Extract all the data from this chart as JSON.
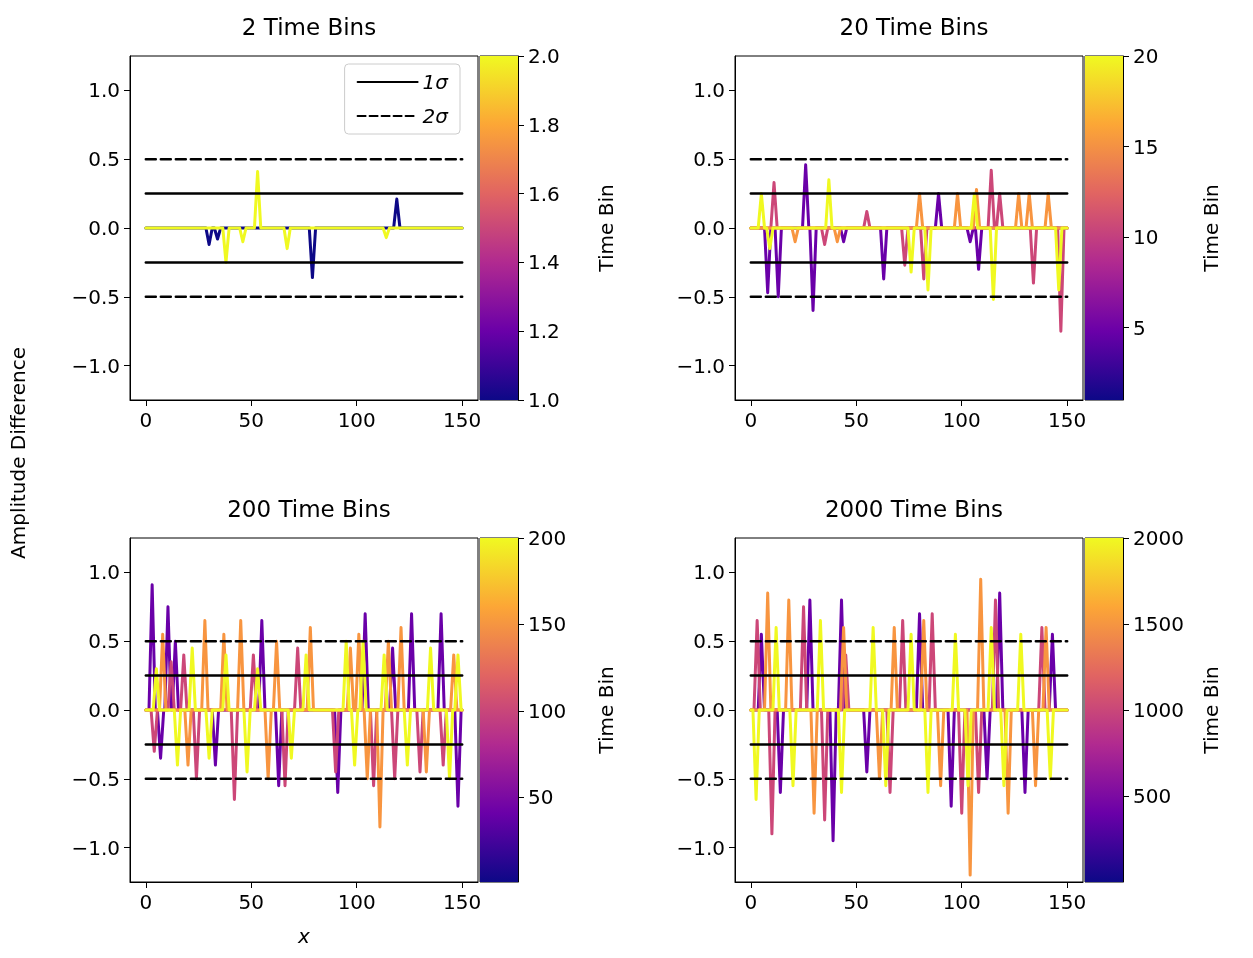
{
  "chart_data": [
    {
      "type": "line",
      "title": "2 Time Bins",
      "ylabel": "Amplitude Difference",
      "xlim": [
        -7.5,
        157.5
      ],
      "xticks": [
        0,
        50,
        100,
        150
      ],
      "ylim": [
        -1.25,
        1.25
      ],
      "yticks": [
        {
          "value": -1,
          "label": "−1.0"
        },
        {
          "value": -0.5,
          "label": "−0.5"
        },
        {
          "value": 0,
          "label": "0.0"
        },
        {
          "value": 0.5,
          "label": "0.5"
        },
        {
          "value": 1,
          "label": "1.0"
        }
      ],
      "clabel": "Time Bin",
      "clim": [
        1,
        2
      ],
      "cticks": [
        {
          "value": 1,
          "label": "1.0"
        },
        {
          "value": 1.2,
          "label": "1.2"
        },
        {
          "value": 1.4,
          "label": "1.4"
        },
        {
          "value": 1.6,
          "label": "1.6"
        },
        {
          "value": 1.8,
          "label": "1.8"
        },
        {
          "value": 2,
          "label": "2.0"
        }
      ],
      "legend": "top right",
      "marker": "none",
      "series": [
        {
          "color": "#0d0887",
          "x": [
            0,
            28.5,
            30,
            31.5,
            32.5,
            34,
            35.5,
            77.5,
            79,
            80.5,
            117.5,
            119,
            120.5,
            150
          ],
          "values": [
            0,
            0,
            -0.12,
            0,
            0,
            -0.08,
            0,
            0,
            -0.36,
            0,
            0,
            0.21,
            0,
            0
          ]
        },
        {
          "color": "#f0f921",
          "x": [
            0,
            36.5,
            38,
            39.5,
            44.5,
            46,
            47.5,
            51.5,
            53,
            54.5,
            65.5,
            67,
            68.5,
            112.5,
            114,
            115.5,
            150
          ],
          "values": [
            0,
            0,
            -0.25,
            0,
            0,
            -0.1,
            0,
            0,
            0.41,
            0,
            0,
            -0.15,
            0,
            0,
            -0.07,
            0,
            0
          ]
        },
        {
          "name": "1σ",
          "color": "#000000",
          "line_style": "solid",
          "x": [
            0,
            150
          ],
          "values": [
            0.25,
            0.25
          ]
        },
        {
          "color": "#000000",
          "line_style": "solid",
          "x": [
            0,
            150
          ],
          "values": [
            -0.25,
            -0.25
          ]
        },
        {
          "name": "2σ",
          "color": "#000000",
          "line_style": "dashed",
          "x": [
            0,
            150
          ],
          "values": [
            0.5,
            0.5
          ]
        },
        {
          "color": "#000000",
          "line_style": "dashed",
          "x": [
            0,
            150
          ],
          "values": [
            -0.5,
            -0.5
          ]
        }
      ]
    },
    {
      "type": "line",
      "title": "20 Time Bins",
      "xlim": [
        -7.5,
        157.5
      ],
      "xticks": [
        0,
        50,
        100,
        150
      ],
      "ylim": [
        -1.25,
        1.25
      ],
      "yticks": [
        {
          "value": -1,
          "label": "−1.0"
        },
        {
          "value": -0.5,
          "label": "−0.5"
        },
        {
          "value": 0,
          "label": "0.0"
        },
        {
          "value": 0.5,
          "label": "0.5"
        },
        {
          "value": 1,
          "label": "1.0"
        }
      ],
      "clabel": "Time Bin",
      "clim": [
        1,
        20
      ],
      "cticks": [
        5,
        10,
        15,
        20
      ],
      "marker": "none",
      "series": [
        {
          "color": "#6a00a8",
          "x": [
            0,
            6.5,
            8,
            9.5,
            11.5,
            13,
            14.5,
            24.5,
            26,
            27.5,
            28,
            29.5,
            31,
            42.5,
            44,
            45.5,
            61.5,
            63,
            64.5,
            87.5,
            89,
            90.5,
            102.5,
            104,
            105.5,
            106.5,
            108,
            109.5,
            150
          ],
          "values": [
            0,
            0,
            -0.47,
            0,
            0,
            -0.5,
            0,
            0,
            0.46,
            0,
            0,
            -0.6,
            0,
            0,
            -0.1,
            0,
            0,
            -0.37,
            0,
            0,
            0.25,
            0,
            0,
            -0.1,
            0,
            0,
            -0.3,
            0,
            0
          ]
        },
        {
          "color": "#cc4778",
          "x": [
            0,
            9.5,
            11,
            12.5,
            33.5,
            35,
            36.5,
            53.5,
            55,
            56.5,
            71.5,
            73,
            74.5,
            80.5,
            82,
            83.5,
            112.5,
            114,
            115.5,
            116.5,
            118,
            119.5,
            132.5,
            134,
            135.5,
            145.5,
            147,
            148.5,
            150
          ],
          "values": [
            0,
            0,
            0.33,
            0,
            0,
            -0.12,
            0,
            0,
            0.12,
            0,
            0,
            -0.27,
            0,
            0,
            -0.37,
            0,
            0,
            0.42,
            0,
            0,
            0.25,
            0,
            0,
            -0.4,
            0,
            0,
            -0.75,
            0,
            0
          ]
        },
        {
          "color": "#f89540",
          "x": [
            0,
            19.5,
            21,
            22.5,
            39.5,
            41,
            42.5,
            78.5,
            80,
            81.5,
            96.5,
            98,
            99.5,
            105.5,
            107,
            108.5,
            125.5,
            127,
            128.5,
            130.5,
            132,
            133.5,
            139.5,
            141,
            142.5,
            150
          ],
          "values": [
            0,
            0,
            -0.1,
            0,
            0,
            -0.1,
            0,
            0,
            0.25,
            0,
            0,
            0.25,
            0,
            0,
            0.28,
            0,
            0,
            0.25,
            0,
            0,
            0.25,
            0,
            0,
            0.25,
            0,
            0
          ]
        },
        {
          "color": "#f0f921",
          "x": [
            0,
            3.5,
            5,
            6.5,
            7.5,
            9,
            10.5,
            35.5,
            37,
            38.5,
            74.5,
            76,
            77.5,
            82.5,
            84,
            85.5,
            104.5,
            106,
            107.5,
            113.5,
            115,
            116.5,
            144.5,
            146,
            147.5,
            150
          ],
          "values": [
            0,
            0,
            0.25,
            0,
            0,
            -0.15,
            0,
            0,
            0.35,
            0,
            0,
            -0.32,
            0,
            0,
            -0.45,
            0,
            0,
            0.25,
            0,
            0,
            -0.52,
            0,
            0,
            -0.45,
            0,
            0
          ]
        },
        {
          "color": "#000000",
          "line_style": "solid",
          "x": [
            0,
            150
          ],
          "values": [
            0.25,
            0.25
          ]
        },
        {
          "color": "#000000",
          "line_style": "solid",
          "x": [
            0,
            150
          ],
          "values": [
            -0.25,
            -0.25
          ]
        },
        {
          "color": "#000000",
          "line_style": "dashed",
          "x": [
            0,
            150
          ],
          "values": [
            0.5,
            0.5
          ]
        },
        {
          "color": "#000000",
          "line_style": "dashed",
          "x": [
            0,
            150
          ],
          "values": [
            -0.5,
            -0.5
          ]
        }
      ]
    },
    {
      "type": "line",
      "title": "200 Time Bins",
      "xlabel": "x",
      "xlim": [
        -7.5,
        157.5
      ],
      "xticks": [
        0,
        50,
        100,
        150
      ],
      "ylim": [
        -1.25,
        1.25
      ],
      "yticks": [
        {
          "value": -1,
          "label": "−1.0"
        },
        {
          "value": -0.5,
          "label": "−0.5"
        },
        {
          "value": 0,
          "label": "0.0"
        },
        {
          "value": 0.5,
          "label": "0.5"
        },
        {
          "value": 1,
          "label": "1.0"
        }
      ],
      "clabel": "Time Bin",
      "clim": [
        1,
        200
      ],
      "cticks": [
        50,
        100,
        150,
        200
      ],
      "marker": "none",
      "series": [
        {
          "color": "#6a00a8",
          "x": [
            0,
            1.5,
            3,
            4.5,
            5.5,
            7,
            8.5,
            9,
            10.5,
            12,
            12.5,
            14,
            15.5,
            31.5,
            33,
            34.5,
            53.5,
            55,
            56.5,
            61.5,
            63,
            64.5,
            89.5,
            91,
            92.5,
            102.5,
            104,
            105.5,
            115.5,
            117,
            118.5,
            124.5,
            126,
            127.5,
            138.5,
            140,
            141.5,
            146.5,
            148,
            149.5,
            150
          ],
          "values": [
            0,
            0,
            0.91,
            0,
            0,
            -0.35,
            0,
            0,
            0.75,
            0,
            0,
            0.5,
            0,
            0,
            -0.4,
            0,
            0,
            0.65,
            0,
            0,
            -0.55,
            0,
            0,
            -0.6,
            0,
            0,
            0.7,
            0,
            0,
            0.45,
            0,
            0,
            0.7,
            0,
            0,
            0.7,
            0,
            0,
            -0.7,
            0,
            0
          ]
        },
        {
          "color": "#cc4778",
          "x": [
            0,
            2.5,
            4,
            5.5,
            10.5,
            12,
            13.5,
            16.5,
            18,
            19.5,
            22.5,
            24,
            25.5,
            40.5,
            42,
            43.5,
            49.5,
            51,
            52.5,
            64.5,
            66,
            67.5,
            70.5,
            72,
            73.5,
            88.5,
            90,
            91.5,
            106.5,
            108,
            109.5,
            116.5,
            118,
            119.5,
            128.5,
            130,
            131.5,
            139.5,
            141,
            142.5,
            150
          ],
          "values": [
            0,
            0,
            -0.3,
            0,
            0,
            0.35,
            0,
            0,
            0.4,
            0,
            0,
            -0.5,
            0,
            0,
            -0.65,
            0,
            0,
            0.4,
            0,
            0,
            -0.55,
            0,
            0,
            0.45,
            0,
            0,
            -0.45,
            0,
            0,
            -0.55,
            0,
            0,
            -0.5,
            0,
            0,
            -0.45,
            0,
            0,
            -0.4,
            0,
            0
          ]
        },
        {
          "color": "#f89540",
          "x": [
            0,
            6.5,
            8,
            9.5,
            18.5,
            20,
            21.5,
            26.5,
            28,
            29.5,
            35.5,
            37,
            38.5,
            43.5,
            45,
            46.5,
            56.5,
            58,
            59.5,
            60.5,
            62,
            63.5,
            76.5,
            78,
            79.5,
            95.5,
            97,
            98.5,
            99.5,
            101,
            102.5,
            103.5,
            105,
            106.5,
            109.5,
            111,
            112.5,
            113.5,
            115,
            116.5,
            119.5,
            121,
            122.5,
            131.5,
            133,
            134.5,
            144.5,
            146,
            147.5,
            150
          ],
          "values": [
            0,
            0,
            0.55,
            0,
            0,
            -0.4,
            0,
            0,
            0.65,
            0,
            0,
            0.55,
            0,
            0,
            0.65,
            0,
            0,
            -0.5,
            0,
            0,
            0.5,
            0,
            0,
            0.6,
            0,
            0,
            0.45,
            0,
            0,
            0.55,
            0,
            0,
            -0.5,
            0,
            0,
            -0.85,
            0,
            0,
            0.5,
            0,
            0,
            0.6,
            0,
            0,
            -0.45,
            0,
            0,
            0.4,
            0,
            0
          ]
        },
        {
          "color": "#f0f921",
          "x": [
            0,
            3.5,
            5,
            6.5,
            13.5,
            15,
            16.5,
            20.5,
            22,
            23.5,
            28.5,
            30,
            31.5,
            36.5,
            38,
            39.5,
            46.5,
            48,
            49.5,
            51.5,
            53,
            54.5,
            67.5,
            69,
            70.5,
            74.5,
            76,
            77.5,
            93.5,
            95,
            96.5,
            97.5,
            99,
            100.5,
            101.5,
            103,
            104.5,
            111.5,
            113,
            114.5,
            122.5,
            124,
            125.5,
            133.5,
            135,
            136.5,
            142.5,
            144,
            145.5,
            146.5,
            148,
            149.5,
            150
          ],
          "values": [
            0,
            0,
            0.3,
            0,
            0,
            -0.4,
            0,
            0,
            0.45,
            0,
            0,
            -0.35,
            0,
            0,
            0.4,
            0,
            0,
            -0.45,
            0,
            0,
            0.3,
            0,
            0,
            -0.35,
            0,
            0,
            0.4,
            0,
            0,
            0.5,
            0,
            0,
            -0.4,
            0,
            0,
            0.5,
            0,
            0,
            0.4,
            0,
            0,
            -0.4,
            0,
            0,
            0.45,
            0,
            0,
            -0.5,
            0,
            0,
            0.4,
            0,
            0
          ]
        },
        {
          "color": "#000000",
          "line_style": "solid",
          "x": [
            0,
            150
          ],
          "values": [
            0.25,
            0.25
          ]
        },
        {
          "color": "#000000",
          "line_style": "solid",
          "x": [
            0,
            150
          ],
          "values": [
            -0.25,
            -0.25
          ]
        },
        {
          "color": "#000000",
          "line_style": "dashed",
          "x": [
            0,
            150
          ],
          "values": [
            0.5,
            0.5
          ]
        },
        {
          "color": "#000000",
          "line_style": "dashed",
          "x": [
            0,
            150
          ],
          "values": [
            -0.5,
            -0.5
          ]
        }
      ]
    },
    {
      "type": "line",
      "title": "2000 Time Bins",
      "xlim": [
        -7.5,
        157.5
      ],
      "xticks": [
        0,
        50,
        100,
        150
      ],
      "ylim": [
        -1.25,
        1.25
      ],
      "yticks": [
        {
          "value": -1,
          "label": "−1.0"
        },
        {
          "value": -0.5,
          "label": "−0.5"
        },
        {
          "value": 0,
          "label": "0.0"
        },
        {
          "value": 0.5,
          "label": "0.5"
        },
        {
          "value": 1,
          "label": "1.0"
        }
      ],
      "clabel": "Time Bin",
      "clim": [
        1,
        2000
      ],
      "cticks": [
        500,
        1000,
        1500,
        2000
      ],
      "marker": "none",
      "series": [
        {
          "color": "#6a00a8",
          "x": [
            0,
            3.5,
            5,
            6.5,
            12.5,
            14,
            15.5,
            26.5,
            28,
            29.5,
            37.5,
            39,
            40.5,
            41.5,
            43,
            44.5,
            53.5,
            55,
            56.5,
            78.5,
            80,
            81.5,
            93.5,
            95,
            96.5,
            110.5,
            112,
            113.5,
            116.5,
            118,
            119.5,
            128.5,
            130,
            131.5,
            141.5,
            143,
            144.5,
            150
          ],
          "values": [
            0,
            0,
            0.55,
            0,
            0,
            -0.6,
            0,
            0,
            0.8,
            0,
            0,
            -0.95,
            0,
            0,
            0.8,
            0,
            0,
            -0.45,
            0,
            0,
            0.7,
            0,
            0,
            -0.7,
            0,
            0,
            -0.5,
            0,
            0,
            0.85,
            0,
            0,
            -0.6,
            0,
            0,
            0.55,
            0,
            0
          ]
        },
        {
          "color": "#cc4778",
          "x": [
            0,
            1.5,
            3,
            4.5,
            8.5,
            10,
            11.5,
            23.5,
            25,
            26.5,
            33.5,
            35,
            36.5,
            43.5,
            45,
            46.5,
            64.5,
            66,
            67.5,
            70.5,
            72,
            73.5,
            84.5,
            86,
            87.5,
            98.5,
            100,
            101.5,
            106.5,
            108,
            109.5,
            114.5,
            116,
            117.5,
            136.5,
            138,
            139.5,
            150
          ],
          "values": [
            0,
            0,
            0.65,
            0,
            0,
            -0.9,
            0,
            0,
            0.75,
            0,
            0,
            -0.8,
            0,
            0,
            0.4,
            0,
            0,
            -0.6,
            0,
            0,
            0.65,
            0,
            0,
            0.7,
            0,
            0,
            -0.75,
            0,
            0,
            -0.6,
            0,
            0,
            0.8,
            0,
            0,
            0.6,
            0,
            0
          ]
        },
        {
          "color": "#f89540",
          "x": [
            0,
            6.5,
            8,
            9.5,
            16.5,
            18,
            19.5,
            28.5,
            30,
            31.5,
            42.5,
            44,
            45.5,
            59.5,
            61,
            62.5,
            66.5,
            68,
            69.5,
            80.5,
            82,
            83.5,
            88.5,
            90,
            91.5,
            102.5,
            104,
            105.5,
            107.5,
            109,
            110.5,
            120.5,
            122,
            123.5,
            133.5,
            135,
            136.5,
            138.5,
            140,
            141.5,
            150
          ],
          "values": [
            0,
            0,
            0.85,
            0,
            0,
            0.8,
            0,
            0,
            -0.75,
            0,
            0,
            0.6,
            0,
            0,
            -0.5,
            0,
            0,
            0.6,
            0,
            0,
            0.65,
            0,
            0,
            -0.55,
            0,
            0,
            -1.2,
            0,
            0,
            0.95,
            0,
            0,
            -0.75,
            0,
            0,
            -0.55,
            0,
            0,
            0.6,
            0,
            0
          ]
        },
        {
          "color": "#f0f921",
          "x": [
            0,
            1,
            2.5,
            4,
            10.5,
            12,
            13.5,
            18.5,
            20,
            21.5,
            31.5,
            33,
            34.5,
            41.5,
            43,
            44.5,
            56.5,
            58,
            59.5,
            62.5,
            64,
            65.5,
            74.5,
            76,
            77.5,
            82.5,
            84,
            85.5,
            95.5,
            97,
            98.5,
            101.5,
            103,
            104.5,
            112.5,
            114,
            115.5,
            118.5,
            120,
            121.5,
            126.5,
            128,
            129.5,
            140.5,
            142,
            143.5,
            150
          ],
          "values": [
            0,
            0,
            -0.65,
            0,
            0,
            0.6,
            0,
            0,
            -0.55,
            0,
            0,
            0.65,
            0,
            0,
            -0.6,
            0,
            0,
            0.6,
            0,
            0,
            -0.55,
            0,
            0,
            0.55,
            0,
            0,
            -0.6,
            0,
            0,
            0.55,
            0,
            0,
            -0.55,
            0,
            0,
            0.6,
            0,
            0,
            -0.55,
            0,
            0,
            0.55,
            0,
            0,
            -0.5,
            0,
            0
          ]
        },
        {
          "color": "#000000",
          "line_style": "solid",
          "x": [
            0,
            150
          ],
          "values": [
            0.25,
            0.25
          ]
        },
        {
          "color": "#000000",
          "line_style": "solid",
          "x": [
            0,
            150
          ],
          "values": [
            -0.25,
            -0.25
          ]
        },
        {
          "color": "#000000",
          "line_style": "dashed",
          "x": [
            0,
            150
          ],
          "values": [
            0.5,
            0.5
          ]
        },
        {
          "color": "#000000",
          "line_style": "dashed",
          "x": [
            0,
            150
          ],
          "values": [
            -0.5,
            -0.5
          ]
        }
      ]
    }
  ]
}
